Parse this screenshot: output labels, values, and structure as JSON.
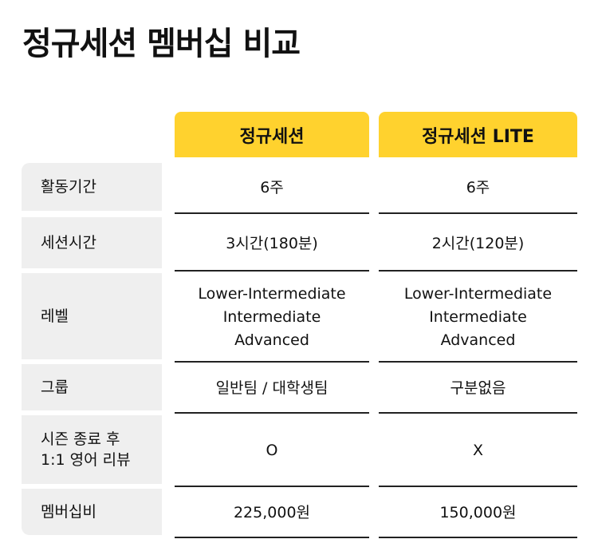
{
  "title": "정규세션 멤버십 비교",
  "columns": [
    "정규세션",
    "정규세션 LITE"
  ],
  "rows": [
    {
      "label": "활동기간",
      "values": [
        "6주",
        "6주"
      ]
    },
    {
      "label": "세션시간",
      "values": [
        "3시간(180분)",
        "2시간(120분)"
      ]
    },
    {
      "label": "레벨",
      "values": [
        "Lower-Intermediate\nIntermediate\nAdvanced",
        "Lower-Intermediate\nIntermediate\nAdvanced"
      ]
    },
    {
      "label": "그룹",
      "values": [
        "일반팀 / 대학생팀",
        "구분없음"
      ]
    },
    {
      "label": "시즌 종료 후\n1:1 영어 리뷰",
      "values": [
        "O",
        "X"
      ]
    },
    {
      "label": "멤버십비",
      "values": [
        "225,000원",
        "150,000원"
      ]
    }
  ],
  "colors": {
    "header": "#ffd22e",
    "label_bg": "#efefef"
  }
}
